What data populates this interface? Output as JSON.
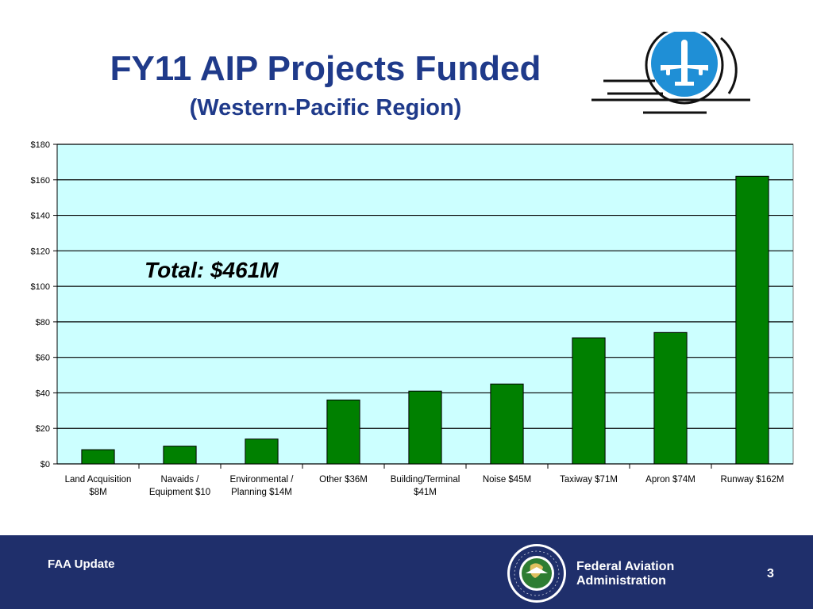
{
  "slide": {
    "title": "FY11 AIP Projects Funded",
    "subtitle": "(Western-Pacific Region)",
    "annotation": "Total: $461M",
    "footer_left": "FAA Update",
    "agency_line1": "Federal Aviation",
    "agency_line2": "Administration",
    "page_number": "3",
    "seal_text": "FEDERAL AVIATION ADMINISTRATION"
  },
  "colors": {
    "title": "#1f3a8a",
    "bar": "#008000",
    "plot_background": "#ccffff",
    "footer": "#1f2f6b",
    "logo_circle": "#1f8fd6"
  },
  "chart_data": {
    "type": "bar",
    "categories": [
      [
        "Land Acquisition",
        "$8M"
      ],
      [
        "Navaids /",
        "Equipment $10"
      ],
      [
        "Environmental /",
        "Planning $14M"
      ],
      [
        "Other $36M"
      ],
      [
        "Building/Terminal",
        "$41M"
      ],
      [
        "Noise $45M"
      ],
      [
        "Taxiway $71M"
      ],
      [
        "Apron $74M"
      ],
      [
        "Runway $162M"
      ]
    ],
    "values": [
      8,
      10,
      14,
      36,
      41,
      45,
      71,
      74,
      162
    ],
    "ylim": [
      0,
      180
    ],
    "yticks": [
      "$0",
      "$20",
      "$40",
      "$60",
      "$80",
      "$100",
      "$120",
      "$140",
      "$160",
      "$180"
    ],
    "ytick_step": 20,
    "grid": true,
    "title": "",
    "xlabel": "",
    "ylabel": ""
  }
}
